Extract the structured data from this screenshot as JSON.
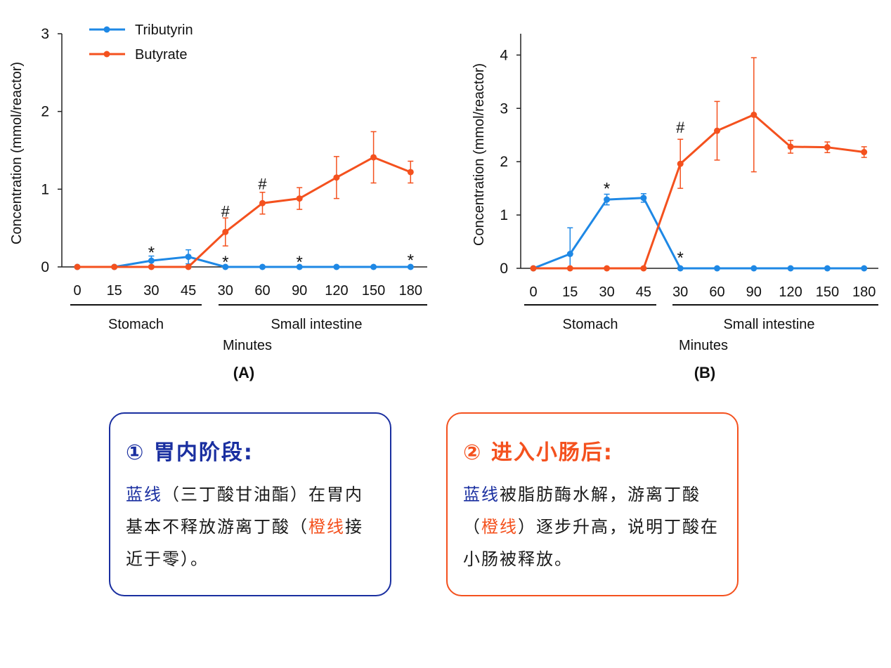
{
  "colors": {
    "tributyrin": "#1e88e5",
    "butyrate": "#f4511e",
    "note1_border": "#1a2fa0",
    "note2_border": "#f4511e"
  },
  "chart_data": [
    {
      "type": "line",
      "panel_label": "(A)",
      "ylabel": "Concentration (mmol/reactor)",
      "xlabel": "Minutes",
      "categories": [
        "0",
        "15",
        "30",
        "45",
        "30",
        "60",
        "90",
        "120",
        "150",
        "180"
      ],
      "groups": [
        {
          "label": "Stomach",
          "from": 0,
          "to": 3
        },
        {
          "label": "Small intestine",
          "from": 4,
          "to": 9
        }
      ],
      "ylim": [
        0,
        3
      ],
      "yticks": [
        0,
        1,
        2,
        3
      ],
      "grid": false,
      "legend": {
        "position": "top-left",
        "entries": [
          "Tributyrin",
          "Butyrate"
        ]
      },
      "series": [
        {
          "name": "Tributyrin",
          "color": "#1e88e5",
          "values": [
            0,
            0,
            0.08,
            0.13,
            0,
            0,
            0,
            0,
            0,
            0
          ],
          "errors": [
            0,
            0,
            0.06,
            0.09,
            0,
            0,
            0,
            0,
            0,
            0
          ]
        },
        {
          "name": "Butyrate",
          "color": "#f4511e",
          "values": [
            0,
            0,
            0,
            0,
            0.45,
            0.82,
            0.88,
            1.15,
            1.41,
            1.22
          ],
          "errors": [
            0,
            0,
            0,
            0,
            0.18,
            0.14,
            0.14,
            0.27,
            0.33,
            0.14
          ]
        }
      ],
      "annotations": [
        {
          "text": "*",
          "index": 2,
          "y": 0.22
        },
        {
          "text": "#",
          "index": 4,
          "y": 0.72
        },
        {
          "text": "*",
          "index": 4,
          "y": 0.1
        },
        {
          "text": "#",
          "index": 5,
          "y": 1.07
        },
        {
          "text": "*",
          "index": 6,
          "y": 0.1
        },
        {
          "text": "*",
          "index": 9,
          "y": 0.12
        }
      ]
    },
    {
      "type": "line",
      "panel_label": "(B)",
      "ylabel": "Concentration (mmol/reactor)",
      "xlabel": "Minutes",
      "categories": [
        "0",
        "15",
        "30",
        "45",
        "30",
        "60",
        "90",
        "120",
        "150",
        "180"
      ],
      "groups": [
        {
          "label": "Stomach",
          "from": 0,
          "to": 3
        },
        {
          "label": "Small intestine",
          "from": 4,
          "to": 9
        }
      ],
      "ylim": [
        0,
        4.4
      ],
      "yticks": [
        0,
        1,
        2,
        3,
        4
      ],
      "grid": false,
      "legend": null,
      "series": [
        {
          "name": "Tributyrin",
          "color": "#1e88e5",
          "values": [
            0,
            0.27,
            1.29,
            1.32,
            0,
            0,
            0,
            0,
            0,
            0
          ],
          "errors": [
            0,
            0.49,
            0.1,
            0.08,
            0,
            0,
            0,
            0,
            0,
            0
          ]
        },
        {
          "name": "Butyrate",
          "color": "#f4511e",
          "values": [
            0,
            0,
            0,
            0,
            1.96,
            2.58,
            2.88,
            2.28,
            2.27,
            2.18
          ],
          "errors": [
            0,
            0,
            0,
            0,
            0.46,
            0.55,
            1.07,
            0.12,
            0.1,
            0.1
          ]
        }
      ],
      "annotations": [
        {
          "text": "*",
          "index": 2,
          "y": 1.55
        },
        {
          "text": "#",
          "index": 4,
          "y": 2.65
        },
        {
          "text": "*",
          "index": 4,
          "y": 0.25
        }
      ]
    }
  ],
  "notes": [
    {
      "title": "① 胃内阶段:",
      "text_parts": [
        {
          "text": "蓝线",
          "hl": "blue"
        },
        {
          "text": "（三丁酸甘油酯）在胃内基本不释放游离丁酸（",
          "hl": ""
        },
        {
          "text": "橙线",
          "hl": "orange"
        },
        {
          "text": "接近于零）。",
          "hl": ""
        }
      ]
    },
    {
      "title": "② 进入小肠后:",
      "text_parts": [
        {
          "text": "蓝线",
          "hl": "blue"
        },
        {
          "text": "被脂肪酶水解，游离丁酸（",
          "hl": ""
        },
        {
          "text": "橙线",
          "hl": "orange"
        },
        {
          "text": "）逐步升高，说明丁酸在小肠被释放。",
          "hl": ""
        }
      ]
    }
  ]
}
